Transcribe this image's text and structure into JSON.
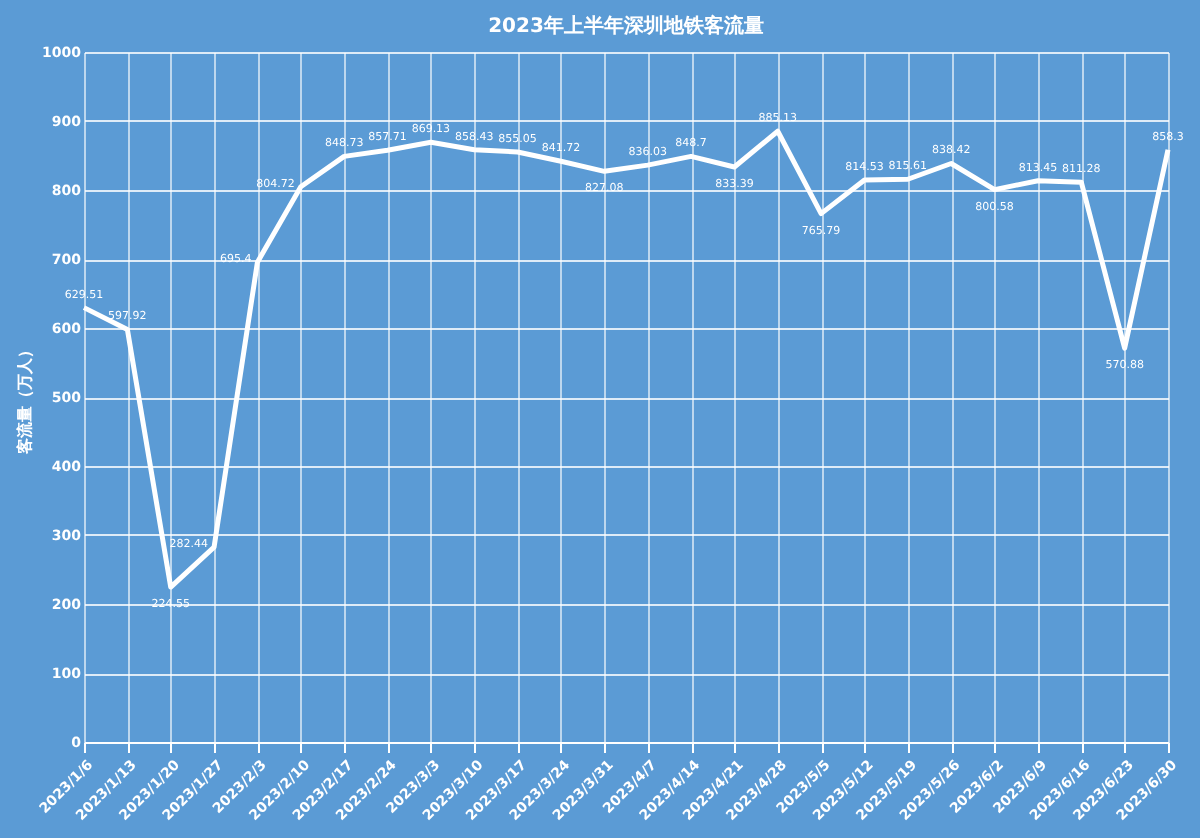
{
  "chart_data": {
    "type": "line",
    "title": "2023年上半年深圳地铁客流量",
    "ylabel": "客流量（万人）",
    "categories": [
      "2023/1/6",
      "2023/1/13",
      "2023/1/20",
      "2023/1/27",
      "2023/2/3",
      "2023/2/10",
      "2023/2/17",
      "2023/2/24",
      "2023/3/3",
      "2023/3/10",
      "2023/3/17",
      "2023/3/24",
      "2023/3/31",
      "2023/4/7",
      "2023/4/14",
      "2023/4/21",
      "2023/4/28",
      "2023/5/5",
      "2023/5/12",
      "2023/5/19",
      "2023/5/26",
      "2023/6/2",
      "2023/6/9",
      "2023/6/16",
      "2023/6/23",
      "2023/6/30"
    ],
    "series": [
      {
        "color": "#ffffff",
        "values": [
          629.51,
          597.92,
          224.55,
          282.44,
          695.4,
          804.72,
          848.73,
          857.71,
          869.13,
          858.43,
          855.05,
          841.72,
          827.08,
          836.03,
          848.7,
          833.39,
          885.13,
          765.79,
          814.53,
          815.61,
          838.42,
          800.58,
          813.45,
          811.28,
          570.88,
          858.3
        ]
      }
    ],
    "ylim": [
      0,
      1000
    ],
    "yticks": [
      0,
      100,
      200,
      300,
      400,
      500,
      600,
      700,
      800,
      900,
      1000
    ],
    "grid": true,
    "data_labels": true,
    "marker": "none",
    "line_style": "solid"
  }
}
